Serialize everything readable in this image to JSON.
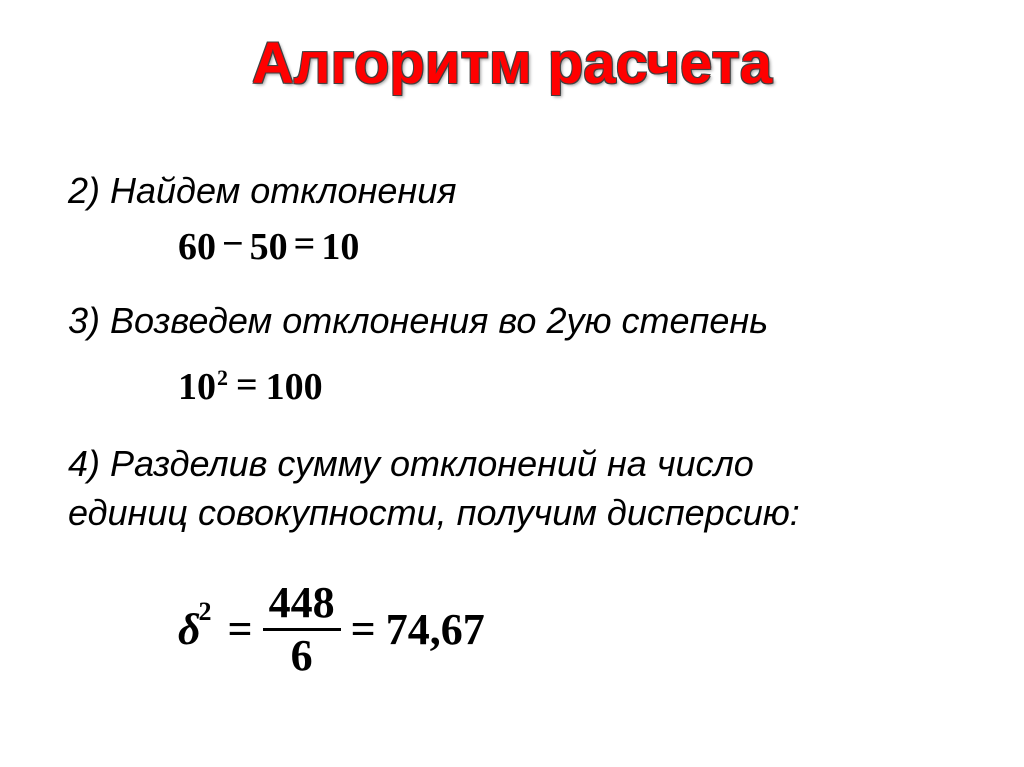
{
  "title": "Алгоритм расчета",
  "title_color": "#ff0000",
  "title_fontsize": 58,
  "background_color": "#ffffff",
  "body_color": "#000000",
  "body_fontsize": 36,
  "equation_fontsize": 38,
  "equation_color": "#000000",
  "step2": {
    "text": "2) Найдем отклонения",
    "equation": {
      "lhs_a": "60",
      "op": "−",
      "lhs_b": "50",
      "eq": "=",
      "rhs": "10"
    }
  },
  "step3": {
    "text": "3) Возведем отклонения во 2ую степень",
    "equation": {
      "base": "10",
      "exp": "2",
      "eq": "=",
      "rhs": "100"
    }
  },
  "step4": {
    "line1": "4) Разделив сумму отклонений на число",
    "line2": "единиц совокупности, получим дисперсию:",
    "equation": {
      "symbol": "δ",
      "exp": "2",
      "eq1": "=",
      "numerator": "448",
      "denominator": "6",
      "eq2": "=",
      "result": "74,67"
    }
  }
}
